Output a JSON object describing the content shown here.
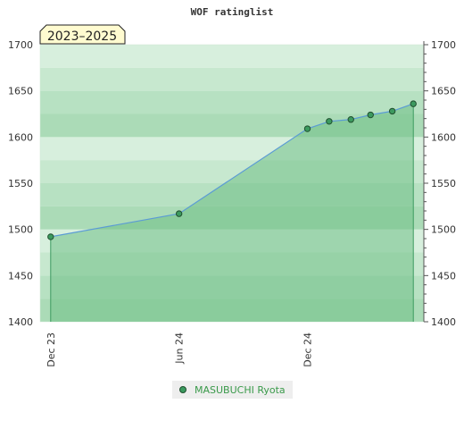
{
  "chart_data": {
    "type": "area",
    "title": "WOF ratinglist",
    "period_label": "2023–2025",
    "xlabel": "",
    "ylabel": "",
    "ylim": [
      1400,
      1700
    ],
    "y_ticks": [
      1400,
      1450,
      1500,
      1550,
      1600,
      1650,
      1700
    ],
    "x_ticks": [
      {
        "label": "Dec 23",
        "date": "2023-12-01"
      },
      {
        "label": "Jun 24",
        "date": "2024-06-01"
      },
      {
        "label": "Dec 24",
        "date": "2024-12-01"
      }
    ],
    "xlim": [
      "2023-11-16",
      "2025-05-16"
    ],
    "series": [
      {
        "name": "MASUBUCHI Ryota",
        "points": [
          {
            "date": "2023-12-01",
            "value": 1492
          },
          {
            "date": "2024-06-01",
            "value": 1517
          },
          {
            "date": "2024-12-01",
            "value": 1609
          },
          {
            "date": "2025-01-01",
            "value": 1617
          },
          {
            "date": "2025-02-01",
            "value": 1619
          },
          {
            "date": "2025-03-01",
            "value": 1624
          },
          {
            "date": "2025-04-01",
            "value": 1628
          },
          {
            "date": "2025-05-01",
            "value": 1636
          }
        ]
      }
    ],
    "legend_position": "bottom",
    "grid": false,
    "colors": {
      "line": "#5b9bd5",
      "fill": "#6fbf86",
      "marker_fill": "#3c9a5f",
      "marker_stroke": "#1f4f2e",
      "band_dark": "#7cc48f",
      "band_light": "#f0f8f2",
      "legend_bg": "#eeeeee",
      "legend_text": "#3a9a4a",
      "period_bg": "#fffbd0"
    }
  }
}
